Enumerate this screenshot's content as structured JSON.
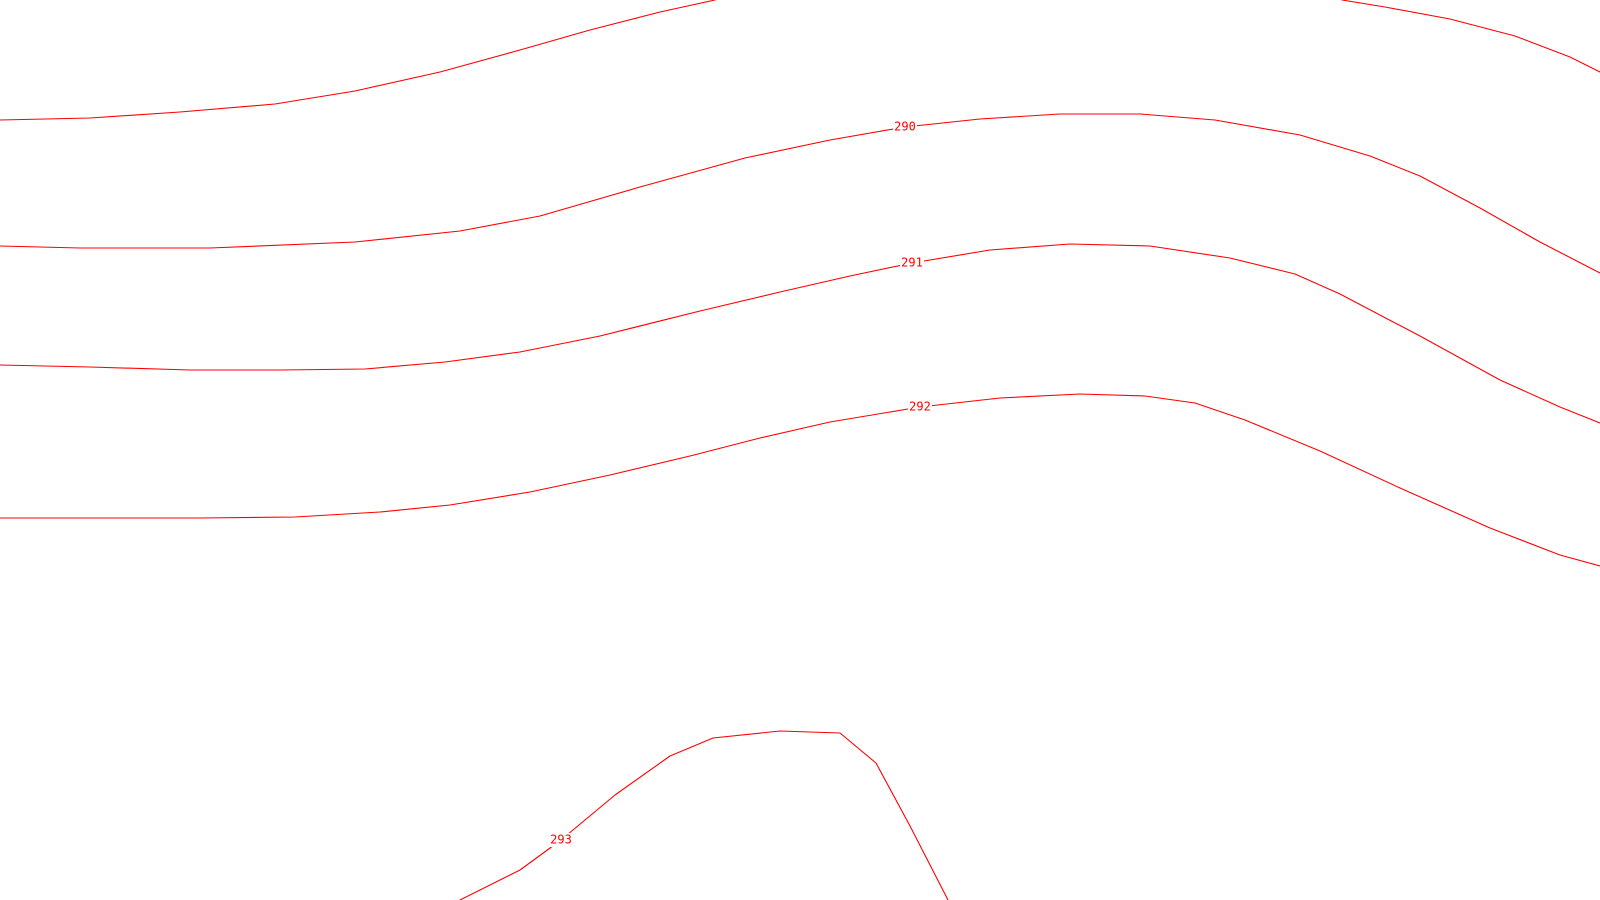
{
  "map": {
    "line_color": "#ff0000",
    "background_color": "#ffffff",
    "contours": [
      {
        "id": "unlabeled-top",
        "value": null,
        "label": ""
      },
      {
        "id": "290",
        "value": 290,
        "label": "290"
      },
      {
        "id": "291",
        "value": 291,
        "label": "291"
      },
      {
        "id": "292",
        "value": 292,
        "label": "292"
      },
      {
        "id": "293",
        "value": 293,
        "label": "293"
      },
      {
        "id": "unlabeled-top-right",
        "value": null,
        "label": ""
      }
    ]
  }
}
